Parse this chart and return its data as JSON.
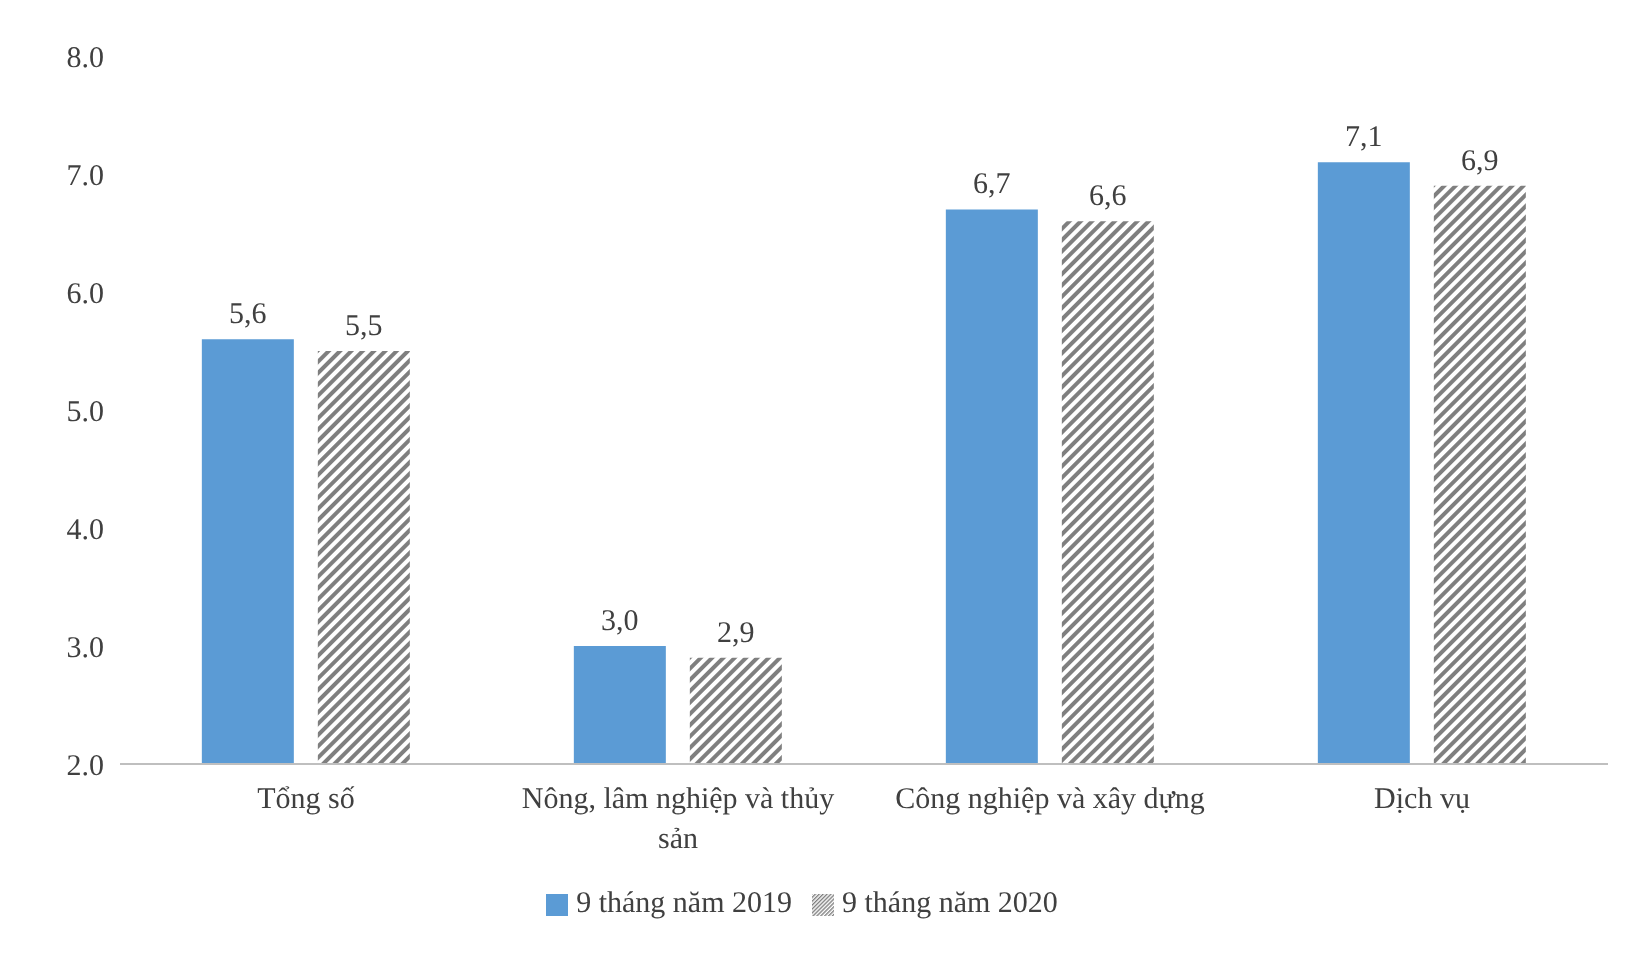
{
  "chart_data": {
    "type": "bar",
    "categories": [
      "Tổng số",
      "Nông, lâm nghiệp và thủy sản",
      "Công nghiệp và xây dựng",
      "Dịch vụ"
    ],
    "series": [
      {
        "name": "9 tháng năm 2019",
        "color": "#5b9bd5",
        "values": [
          5.6,
          3.0,
          6.7,
          7.1
        ],
        "value_labels": [
          "5,6",
          "3,0",
          "6,7",
          "7,1"
        ]
      },
      {
        "name": "9 tháng năm 2020",
        "color": "#7f7f7f",
        "values": [
          5.5,
          2.9,
          6.6,
          6.9
        ],
        "value_labels": [
          "5,5",
          "2,9",
          "6,6",
          "6,9"
        ]
      }
    ],
    "ylim": [
      2,
      8
    ],
    "yticks": [
      {
        "value": 2,
        "label": "2.0"
      },
      {
        "value": 3,
        "label": "3.0"
      },
      {
        "value": 4,
        "label": "4.0"
      },
      {
        "value": 5,
        "label": "5.0"
      },
      {
        "value": 6,
        "label": "6.0"
      },
      {
        "value": 7,
        "label": "7.0"
      },
      {
        "value": 8,
        "label": "8.0"
      }
    ],
    "grid": false,
    "legend": "bottom"
  }
}
